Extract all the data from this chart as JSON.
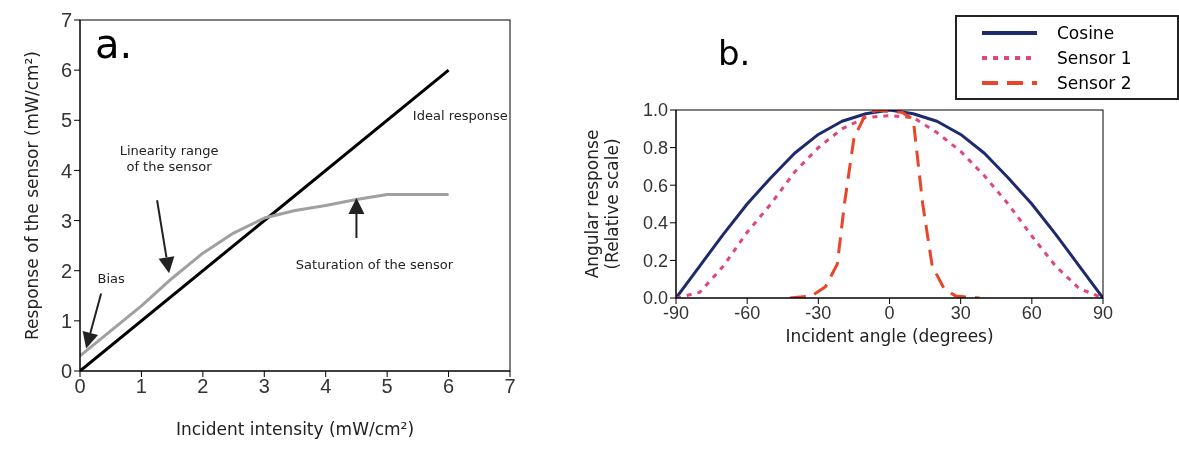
{
  "chart_data": [
    {
      "type": "line",
      "title": "a.",
      "xlabel": "Incident intensity (mW/cm²)",
      "ylabel": "Response of the sensor (mW/cm²)",
      "xlim": [
        0,
        7
      ],
      "ylim": [
        0,
        7
      ],
      "xticks": [
        0,
        1,
        2,
        3,
        4,
        5,
        6,
        7
      ],
      "yticks": [
        0,
        1,
        2,
        3,
        4,
        5,
        6,
        7
      ],
      "marker": "none",
      "series": [
        {
          "color": "#000000",
          "x": [
            0,
            6
          ],
          "values": [
            0,
            6
          ],
          "line_style": "solid"
        },
        {
          "color": "#a0a0a0",
          "x": [
            0,
            0.5,
            1,
            1.5,
            2,
            2.5,
            3,
            3.5,
            4,
            4.5,
            5,
            5.5,
            6
          ],
          "values": [
            0.3,
            0.8,
            1.3,
            1.85,
            2.35,
            2.75,
            3.05,
            3.2,
            3.3,
            3.42,
            3.52,
            3.52,
            3.52
          ],
          "line_style": "solid"
        }
      ],
      "annotations": [
        "Bias",
        "Linearity range\nof the sensor",
        "Saturation of the sensor",
        "Ideal response"
      ]
    },
    {
      "type": "line",
      "title": "b.",
      "xlabel": "Incident angle (degrees)",
      "ylabel": "Angular response\n(Relative scale)",
      "xlim": [
        -90,
        90
      ],
      "ylim": [
        0,
        1
      ],
      "xticks": [
        -90,
        -60,
        -30,
        0,
        30,
        60,
        90
      ],
      "yticks": [
        {
          "value": 0,
          "label": "0.0"
        },
        {
          "value": 0.2,
          "label": "0.2"
        },
        {
          "value": 0.4,
          "label": "0.4"
        },
        {
          "value": 0.6,
          "label": "0.6"
        },
        {
          "value": 0.8,
          "label": "0.8"
        },
        {
          "value": 1,
          "label": "1.0"
        }
      ],
      "legend": "top right",
      "marker": "none",
      "series": [
        {
          "name": "Cosine",
          "color": "#1f2a6e",
          "line_style": "solid",
          "x": [
            -90,
            -80,
            -70,
            -60,
            -50,
            -40,
            -30,
            -20,
            -10,
            0,
            10,
            20,
            30,
            40,
            50,
            60,
            70,
            80,
            90
          ],
          "values": [
            0,
            0.17,
            0.34,
            0.5,
            0.64,
            0.77,
            0.87,
            0.94,
            0.98,
            1,
            0.98,
            0.94,
            0.87,
            0.77,
            0.64,
            0.5,
            0.34,
            0.17,
            0
          ]
        },
        {
          "name": "Sensor 1",
          "color": "#e0457b",
          "line_style": "dotted",
          "x": [
            -90,
            -80,
            -70,
            -60,
            -50,
            -40,
            -30,
            -20,
            -10,
            0,
            10,
            20,
            30,
            40,
            50,
            60,
            70,
            80,
            90
          ],
          "values": [
            0,
            0.03,
            0.17,
            0.35,
            0.5,
            0.67,
            0.8,
            0.9,
            0.96,
            0.97,
            0.96,
            0.88,
            0.78,
            0.65,
            0.5,
            0.33,
            0.17,
            0.05,
            0
          ]
        },
        {
          "name": "Sensor 2",
          "color": "#e8452a",
          "line_style": "dashed",
          "x": [
            -42,
            -33,
            -27,
            -22,
            -19,
            -15,
            -10,
            -5,
            0,
            5,
            10,
            14,
            18,
            23,
            28,
            38
          ],
          "values": [
            0,
            0.01,
            0.06,
            0.18,
            0.5,
            0.85,
            0.98,
            1,
            0.99,
            0.99,
            0.95,
            0.5,
            0.17,
            0.05,
            0.01,
            0
          ]
        }
      ]
    }
  ]
}
